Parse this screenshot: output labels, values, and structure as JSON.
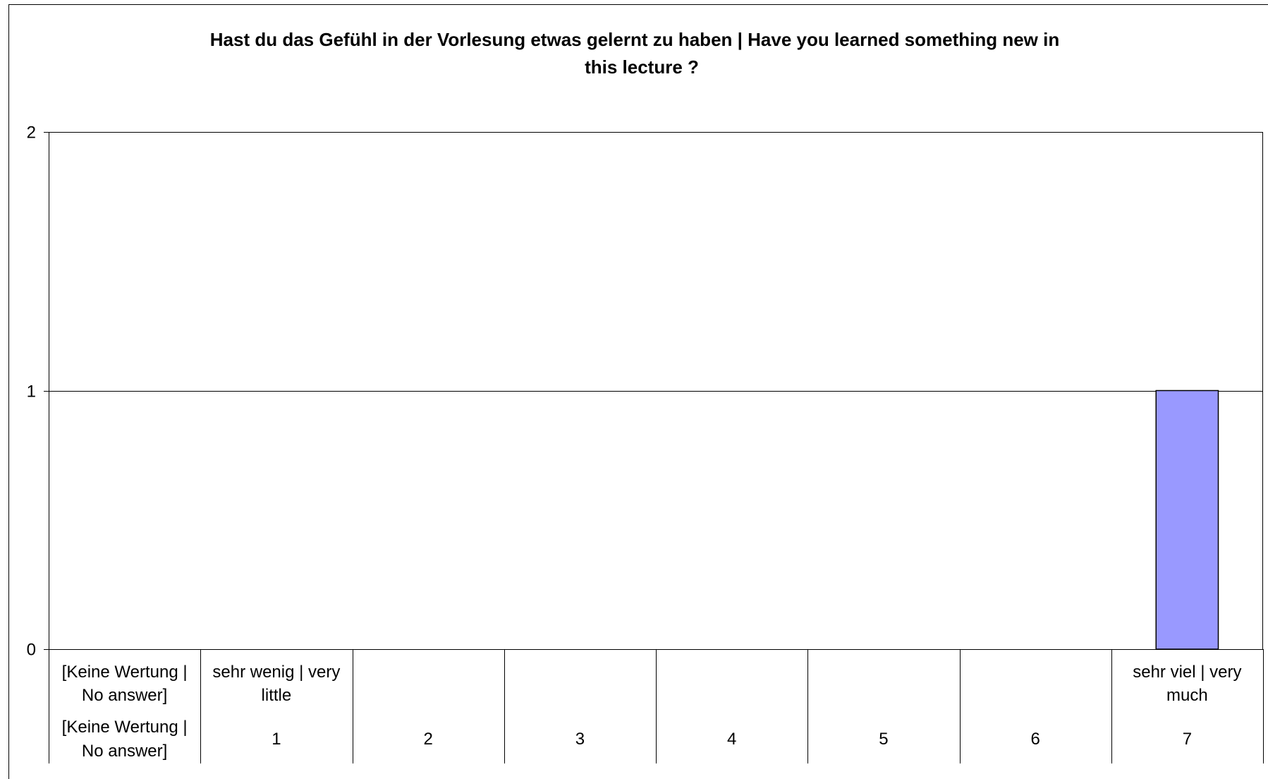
{
  "chart_data": {
    "type": "bar",
    "title": "Hast du das Gefühl in der Vorlesung etwas gelernt zu haben | Have you learned something new in this lecture ?",
    "title_lines": [
      "Hast du das Gefühl in der Vorlesung etwas gelernt zu haben | Have you learned something new in",
      "this lecture ?"
    ],
    "categories": [
      "[Keine Wertung | No answer]",
      "1",
      "2",
      "3",
      "4",
      "5",
      "6",
      "7"
    ],
    "category_labels_row1": [
      [
        "[Keine Wertung |",
        "No answer]"
      ],
      [
        "sehr wenig | very",
        "little"
      ],
      [],
      [],
      [],
      [],
      [],
      [
        "sehr viel | very",
        "much"
      ]
    ],
    "category_labels_row2": [
      [
        "[Keine Wertung |",
        "No answer]"
      ],
      [
        "1"
      ],
      [
        "2"
      ],
      [
        "3"
      ],
      [
        "4"
      ],
      [
        "5"
      ],
      [
        "6"
      ],
      [
        "7"
      ]
    ],
    "values": [
      0,
      0,
      0,
      0,
      0,
      0,
      0,
      1
    ],
    "ylim": [
      0,
      2
    ],
    "yticks": [
      0,
      1,
      2
    ],
    "xlabel": "",
    "ylabel": "",
    "grid": true,
    "legend": "none",
    "colors": {
      "bar_fill": "#9999ff",
      "bar_stroke": "#000000",
      "grid": "#000000",
      "axis": "#000000",
      "text": "#000000",
      "frame": "#000000"
    }
  }
}
